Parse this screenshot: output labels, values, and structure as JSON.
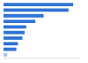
{
  "chart_data": {
    "type": "bar",
    "orientation": "horizontal",
    "categories": [
      null,
      null,
      null,
      null,
      null,
      null,
      null,
      null,
      null,
      null
    ],
    "values": [
      92,
      86,
      53,
      42,
      30,
      28,
      25,
      19,
      17,
      5
    ],
    "colors": [
      "#2f74d6",
      "#2f74d6",
      "#2f74d6",
      "#2f74d6",
      "#2f74d6",
      "#2f74d6",
      "#2f74d6",
      "#2f74d6",
      "#2f74d6",
      "#a9c4ea"
    ],
    "xlim": [
      0,
      100
    ],
    "grid": false,
    "tick_labels": false
  }
}
